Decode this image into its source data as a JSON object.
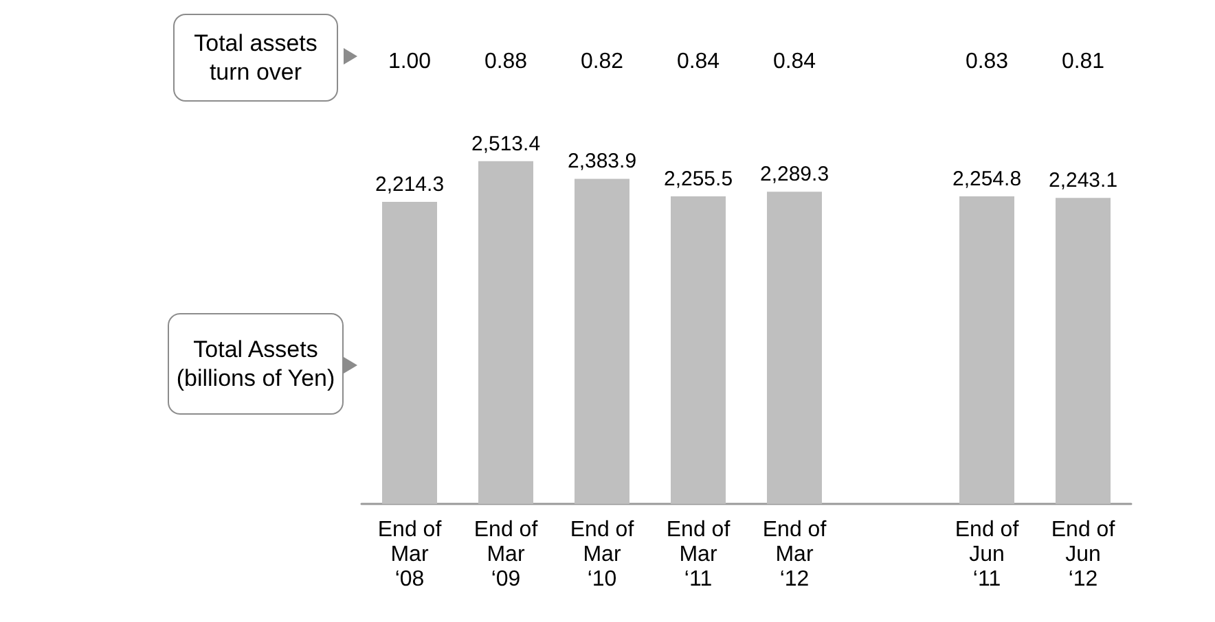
{
  "chart_data": {
    "type": "bar",
    "categories": [
      "End of\nMar\n‘08",
      "End of\nMar\n‘09",
      "End of\nMar\n‘10",
      "End of\nMar\n‘11",
      "End of\nMar\n‘12",
      null,
      "End of\nJun\n‘11",
      "End of\nJun\n‘12"
    ],
    "values": [
      2214.3,
      2513.4,
      2383.9,
      2255.5,
      2289.3,
      null,
      2254.8,
      2243.1
    ],
    "color": "#bfbfbf",
    "value_labels": [
      "2,214.3",
      "2,513.4",
      "2,383.9",
      "2,255.5",
      "2,289.3",
      null,
      "2,254.8",
      "2,243.1"
    ],
    "annotations": [
      "Total assets\nturn over",
      "Total Assets\n(billions of Yen)",
      "1.00",
      "0.88",
      "0.82",
      "0.84",
      "0.84",
      "0.83",
      "0.81"
    ]
  }
}
